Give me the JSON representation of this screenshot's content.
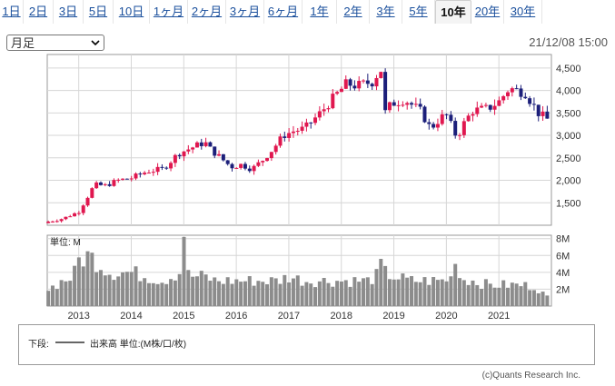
{
  "tabs": [
    {
      "label": "1日"
    },
    {
      "label": "2日"
    },
    {
      "label": "3日"
    },
    {
      "label": "5日"
    },
    {
      "label": "10日"
    },
    {
      "label": "1ヶ月"
    },
    {
      "label": "2ヶ月"
    },
    {
      "label": "3ヶ月"
    },
    {
      "label": "6ヶ月"
    },
    {
      "label": "1年"
    },
    {
      "label": "2年"
    },
    {
      "label": "3年"
    },
    {
      "label": "5年"
    },
    {
      "label": "10年",
      "active": true
    },
    {
      "label": "20年"
    },
    {
      "label": "30年"
    }
  ],
  "period_select": {
    "value": "月足"
  },
  "datetime": "21/12/08 15:00",
  "volume_unit_label": "単位: M",
  "legend": {
    "label": "下段:",
    "series": "出来高 単位:(M株/口/枚)"
  },
  "copyright": "(c)Quants Research Inc.",
  "colors": {
    "up": "#e0174f",
    "down": "#1c1f7a",
    "volume": "#8c8c8c",
    "grid": "#d6d6d6",
    "border": "#999999"
  },
  "chart_data": [
    {
      "type": "candlestick",
      "x_tick_labels": [
        "2013",
        "2014",
        "2015",
        "2016",
        "2017",
        "2018",
        "2019",
        "2020",
        "2021"
      ],
      "y_tick_labels": [
        "1,500",
        "2,000",
        "2,500",
        "3,000",
        "3,500",
        "4,000",
        "4,500"
      ],
      "ylim": [
        1000,
        4800
      ],
      "x_domain": [
        2012.4,
        2022.0
      ],
      "close_anchors": [
        [
          2012.42,
          1080
        ],
        [
          2012.7,
          1150
        ],
        [
          2013.0,
          1300
        ],
        [
          2013.3,
          1900
        ],
        [
          2013.5,
          1880
        ],
        [
          2013.75,
          2000
        ],
        [
          2014.0,
          2050
        ],
        [
          2014.3,
          2200
        ],
        [
          2014.6,
          2250
        ],
        [
          2014.9,
          2600
        ],
        [
          2015.2,
          2750
        ],
        [
          2015.4,
          2850
        ],
        [
          2015.5,
          2700
        ],
        [
          2015.7,
          2500
        ],
        [
          2015.9,
          2300
        ],
        [
          2016.1,
          2350
        ],
        [
          2016.3,
          2250
        ],
        [
          2016.5,
          2450
        ],
        [
          2016.7,
          2700
        ],
        [
          2016.9,
          3000
        ],
        [
          2017.1,
          3100
        ],
        [
          2017.3,
          3150
        ],
        [
          2017.6,
          3500
        ],
        [
          2017.9,
          3900
        ],
        [
          2018.1,
          4150
        ],
        [
          2018.3,
          4100
        ],
        [
          2018.6,
          4200
        ],
        [
          2018.75,
          4500
        ],
        [
          2018.83,
          3500
        ],
        [
          2018.95,
          3700
        ],
        [
          2019.2,
          3800
        ],
        [
          2019.5,
          3550
        ],
        [
          2019.7,
          3150
        ],
        [
          2019.9,
          3400
        ],
        [
          2020.0,
          3450
        ],
        [
          2020.2,
          2950
        ],
        [
          2020.35,
          3300
        ],
        [
          2020.5,
          3550
        ],
        [
          2020.8,
          3600
        ],
        [
          2021.0,
          3750
        ],
        [
          2021.2,
          4050
        ],
        [
          2021.5,
          3950
        ],
        [
          2021.75,
          3500
        ],
        [
          2021.93,
          3350
        ]
      ]
    },
    {
      "type": "bar",
      "name": "出来高",
      "y_tick_labels": [
        "2M",
        "4M",
        "6M",
        "8M"
      ],
      "ylim": [
        0,
        8.4
      ],
      "values_anchors": [
        [
          2012.42,
          2.0
        ],
        [
          2012.7,
          3.0
        ],
        [
          2012.9,
          3.5
        ],
        [
          2013.0,
          5.5
        ],
        [
          2013.2,
          6.0
        ],
        [
          2013.4,
          5.0
        ],
        [
          2013.6,
          4.0
        ],
        [
          2013.8,
          4.0
        ],
        [
          2014.0,
          4.0
        ],
        [
          2014.3,
          3.5
        ],
        [
          2014.6,
          3.0
        ],
        [
          2014.9,
          4.0
        ],
        [
          2015.2,
          3.5
        ],
        [
          2015.4,
          3.5
        ],
        [
          2015.6,
          3.0
        ],
        [
          2015.9,
          3.0
        ],
        [
          2016.2,
          3.0
        ],
        [
          2016.5,
          3.0
        ],
        [
          2016.8,
          3.0
        ],
        [
          2017.0,
          3.5
        ],
        [
          2017.3,
          3.0
        ],
        [
          2017.6,
          3.0
        ],
        [
          2017.9,
          3.0
        ],
        [
          2018.2,
          3.0
        ],
        [
          2018.5,
          3.0
        ],
        [
          2018.8,
          4.0
        ],
        [
          2019.0,
          3.5
        ],
        [
          2019.3,
          3.0
        ],
        [
          2019.6,
          3.0
        ],
        [
          2019.9,
          3.0
        ],
        [
          2020.2,
          3.5
        ],
        [
          2020.5,
          3.0
        ],
        [
          2020.8,
          2.5
        ],
        [
          2021.1,
          2.5
        ],
        [
          2021.4,
          2.5
        ],
        [
          2021.7,
          2.3
        ],
        [
          2021.93,
          1.0
        ]
      ],
      "spikes": [
        [
          2015.0,
          8.2
        ],
        [
          2018.75,
          5.6
        ],
        [
          2013.15,
          6.5
        ],
        [
          2020.15,
          5.0
        ]
      ]
    }
  ]
}
